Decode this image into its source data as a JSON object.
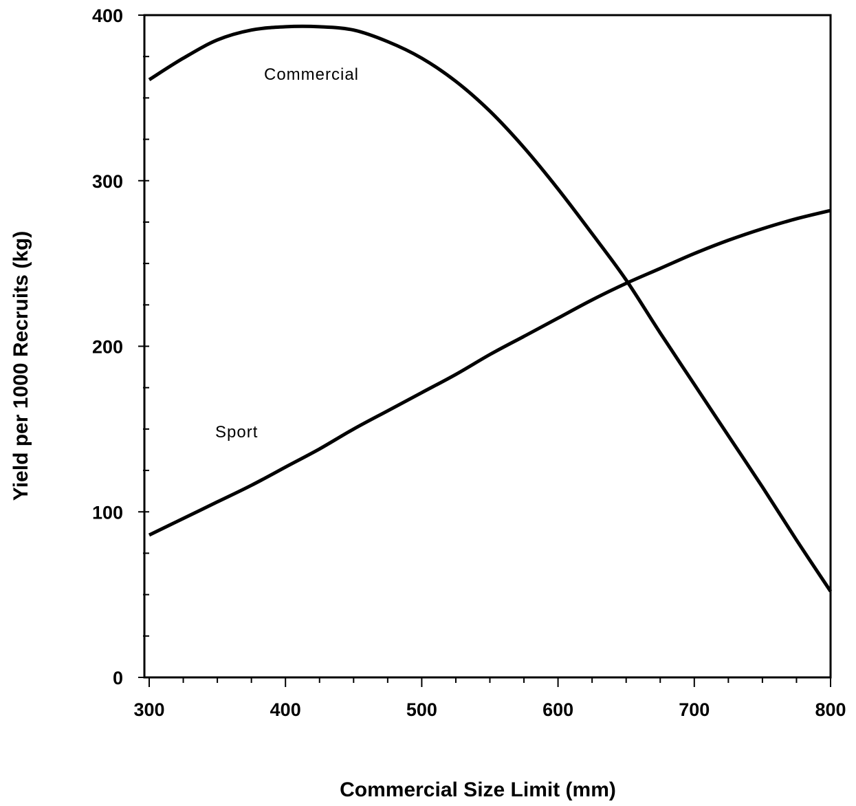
{
  "chart_data": {
    "type": "line",
    "title": "",
    "xlabel": "Commercial Size Limit (mm)",
    "ylabel": "Yield per 1000 Recruits (kg)",
    "xlim": [
      300,
      800
    ],
    "ylim": [
      0,
      400
    ],
    "x_ticks": [
      300,
      400,
      500,
      600,
      700,
      800
    ],
    "y_ticks": [
      0,
      100,
      200,
      300,
      400
    ],
    "x_minor_step": 25,
    "y_minor_step": 25,
    "grid": false,
    "legend": "none",
    "series": [
      {
        "name": "Commercial",
        "x": [
          300,
          325,
          350,
          375,
          400,
          425,
          450,
          475,
          500,
          525,
          550,
          575,
          600,
          625,
          650,
          675,
          700,
          725,
          750,
          775,
          800
        ],
        "y": [
          361,
          374,
          385,
          391,
          393,
          393,
          391,
          384,
          374,
          360,
          342,
          320,
          295,
          268,
          240,
          208,
          177,
          146,
          115,
          83,
          52
        ]
      },
      {
        "name": "Sport",
        "x": [
          300,
          325,
          350,
          375,
          400,
          425,
          450,
          475,
          500,
          525,
          550,
          575,
          600,
          625,
          650,
          675,
          700,
          725,
          750,
          775,
          800
        ],
        "y": [
          86,
          96,
          106,
          116,
          127,
          138,
          150,
          161,
          172,
          183,
          195,
          206,
          217,
          228,
          238,
          247,
          256,
          264,
          271,
          277,
          282
        ]
      }
    ]
  }
}
